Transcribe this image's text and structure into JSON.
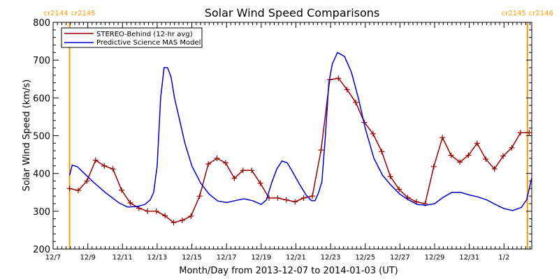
{
  "chart_data": {
    "type": "line",
    "title": "Solar Wind Speed Comparisons",
    "xlabel": "Month/Day from 2013-12-07 to 2014-01-03 (UT)",
    "ylabel": "Solar Wind Speed (km/s)",
    "xlim": [
      0,
      27.6
    ],
    "ylim": [
      200,
      800
    ],
    "x_tick_positions": [
      0,
      2,
      4,
      6,
      8,
      10,
      12,
      14,
      16,
      18,
      20,
      22,
      24,
      26
    ],
    "x_tick_labels": [
      "12/7",
      "12/9",
      "12/11",
      "12/13",
      "12/15",
      "12/17",
      "12/19",
      "12/21",
      "12/23",
      "12/25",
      "12/27",
      "12/29",
      "12/31",
      "1/2"
    ],
    "y_ticks": [
      200,
      300,
      400,
      500,
      600,
      700,
      800
    ],
    "grid": false,
    "legend_position": "top-left",
    "carrington_markers": [
      {
        "x": 0.95,
        "label_left": "cr2144",
        "label_right": "cr2145"
      },
      {
        "x": 27.35,
        "label_left": "cr2145",
        "label_right": "cr2146"
      }
    ],
    "series": [
      {
        "name": "STEREO-Behind (12-hr avg)",
        "color": "#990000",
        "marker": "+",
        "x": [
          0.95,
          1.45,
          1.95,
          2.45,
          2.95,
          3.45,
          3.95,
          4.45,
          4.95,
          5.45,
          5.95,
          6.45,
          6.95,
          7.45,
          7.95,
          8.45,
          8.95,
          9.45,
          9.95,
          10.45,
          10.95,
          11.45,
          11.95,
          12.45,
          12.95,
          13.45,
          13.95,
          14.45,
          14.95,
          15.45,
          15.95,
          16.45,
          16.95,
          17.45,
          17.95,
          18.45,
          18.95,
          19.45,
          19.95,
          20.45,
          20.95,
          21.45,
          21.95,
          22.45,
          22.95,
          23.45,
          23.95,
          24.45,
          24.95,
          25.45,
          25.95,
          26.45,
          26.95,
          27.45
        ],
        "y": [
          360,
          355,
          380,
          435,
          420,
          412,
          356,
          322,
          308,
          300,
          300,
          288,
          270,
          276,
          287,
          340,
          425,
          440,
          428,
          387,
          408,
          408,
          374,
          335,
          335,
          330,
          325,
          335,
          340,
          462,
          648,
          652,
          622,
          588,
          535,
          505,
          458,
          392,
          358,
          336,
          325,
          320,
          418,
          495,
          448,
          430,
          448,
          480,
          438,
          412,
          446,
          468,
          508,
          508
        ]
      },
      {
        "name": "Predictive Science MAS Model",
        "color": "#0000cc",
        "marker": "",
        "x": [
          0.95,
          1.1,
          1.4,
          1.8,
          2.3,
          3.0,
          3.8,
          4.3,
          4.9,
          5.3,
          5.6,
          5.8,
          6.0,
          6.2,
          6.4,
          6.6,
          6.8,
          7.0,
          7.3,
          7.6,
          8.0,
          8.5,
          9.0,
          9.5,
          10.0,
          10.5,
          11.0,
          11.5,
          12.0,
          12.3,
          12.6,
          12.9,
          13.2,
          13.5,
          13.8,
          14.2,
          14.6,
          14.9,
          15.1,
          15.3,
          15.5,
          15.7,
          15.9,
          16.1,
          16.4,
          16.8,
          17.2,
          17.6,
          18.0,
          18.5,
          19.0,
          19.5,
          20.0,
          20.5,
          21.0,
          21.5,
          22.0,
          22.5,
          23.0,
          23.5,
          24.0,
          24.5,
          25.0,
          25.5,
          26.0,
          26.5,
          27.0,
          27.3,
          27.6
        ],
        "y": [
          395,
          422,
          418,
          400,
          378,
          350,
          322,
          311,
          313,
          318,
          330,
          350,
          420,
          600,
          680,
          680,
          655,
          600,
          540,
          480,
          420,
          375,
          345,
          327,
          323,
          328,
          333,
          328,
          318,
          330,
          375,
          412,
          433,
          428,
          405,
          372,
          342,
          328,
          328,
          348,
          378,
          500,
          640,
          690,
          720,
          710,
          668,
          600,
          520,
          440,
          395,
          368,
          345,
          330,
          318,
          316,
          320,
          337,
          350,
          350,
          343,
          338,
          330,
          318,
          307,
          302,
          310,
          330,
          388
        ]
      }
    ]
  }
}
